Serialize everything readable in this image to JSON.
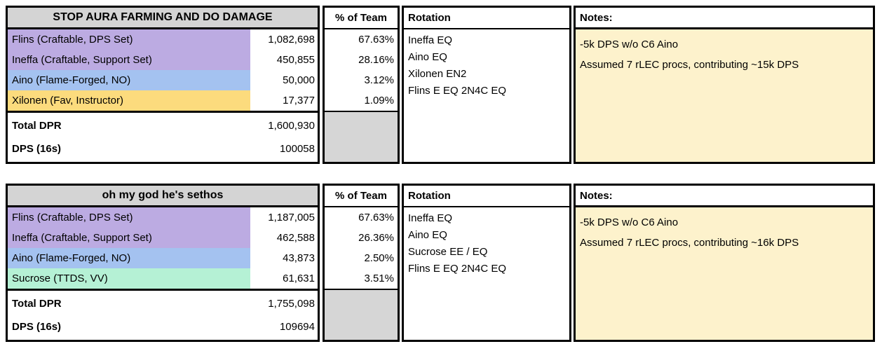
{
  "colors": {
    "header_gray": "#d4d4d4",
    "total_gray": "#d6d6d6",
    "purple": "#bcabe2",
    "blue": "#a4c2f0",
    "yellow": "#fcdb7d",
    "mint": "#b5f1d5",
    "cream": "#fdf2cc"
  },
  "tables": [
    {
      "title": "STOP AURA FARMING AND DO DAMAGE",
      "pct_header": "% of Team",
      "rotation_header": "Rotation",
      "notes_header": "Notes:",
      "rows": [
        {
          "label": "Flins (Craftable, DPS Set)",
          "value": "1,082,698",
          "pct": "67.63%",
          "color": "purple"
        },
        {
          "label": "Ineffa (Craftable, Support Set)",
          "value": "450,855",
          "pct": "28.16%",
          "color": "purple"
        },
        {
          "label": "Aino (Flame-Forged, NO)",
          "value": "50,000",
          "pct": "3.12%",
          "color": "blue"
        },
        {
          "label": "Xilonen (Fav, Instructor)",
          "value": "17,377",
          "pct": "1.09%",
          "color": "yellow"
        }
      ],
      "totals": [
        {
          "label": "Total DPR",
          "value": "1,600,930"
        },
        {
          "label": "DPS (16s)",
          "value": "100058"
        }
      ],
      "rotation_lines": [
        "Ineffa EQ",
        "Aino EQ",
        "Xilonen EN2",
        "Flins E EQ 2N4C EQ"
      ],
      "notes_lines": [
        "-5k DPS w/o C6 Aino",
        "Assumed 7 rLEC procs, contributing ~15k DPS"
      ]
    },
    {
      "title": "oh my god he's sethos",
      "pct_header": "% of Team",
      "rotation_header": "Rotation",
      "notes_header": "Notes:",
      "rows": [
        {
          "label": "Flins (Craftable, DPS Set)",
          "value": "1,187,005",
          "pct": "67.63%",
          "color": "purple"
        },
        {
          "label": "Ineffa (Craftable, Support Set)",
          "value": "462,588",
          "pct": "26.36%",
          "color": "purple"
        },
        {
          "label": "Aino (Flame-Forged, NO)",
          "value": "43,873",
          "pct": "2.50%",
          "color": "blue"
        },
        {
          "label": "Sucrose (TTDS, VV)",
          "value": "61,631",
          "pct": "3.51%",
          "color": "mint"
        }
      ],
      "totals": [
        {
          "label": "Total DPR",
          "value": "1,755,098"
        },
        {
          "label": "DPS (16s)",
          "value": "109694"
        }
      ],
      "rotation_lines": [
        "Ineffa EQ",
        "Aino EQ",
        "Sucrose EE / EQ",
        "Flins E EQ 2N4C EQ"
      ],
      "notes_lines": [
        "-5k DPS w/o C6 Aino",
        "Assumed 7 rLEC procs, contributing ~16k DPS"
      ]
    }
  ]
}
